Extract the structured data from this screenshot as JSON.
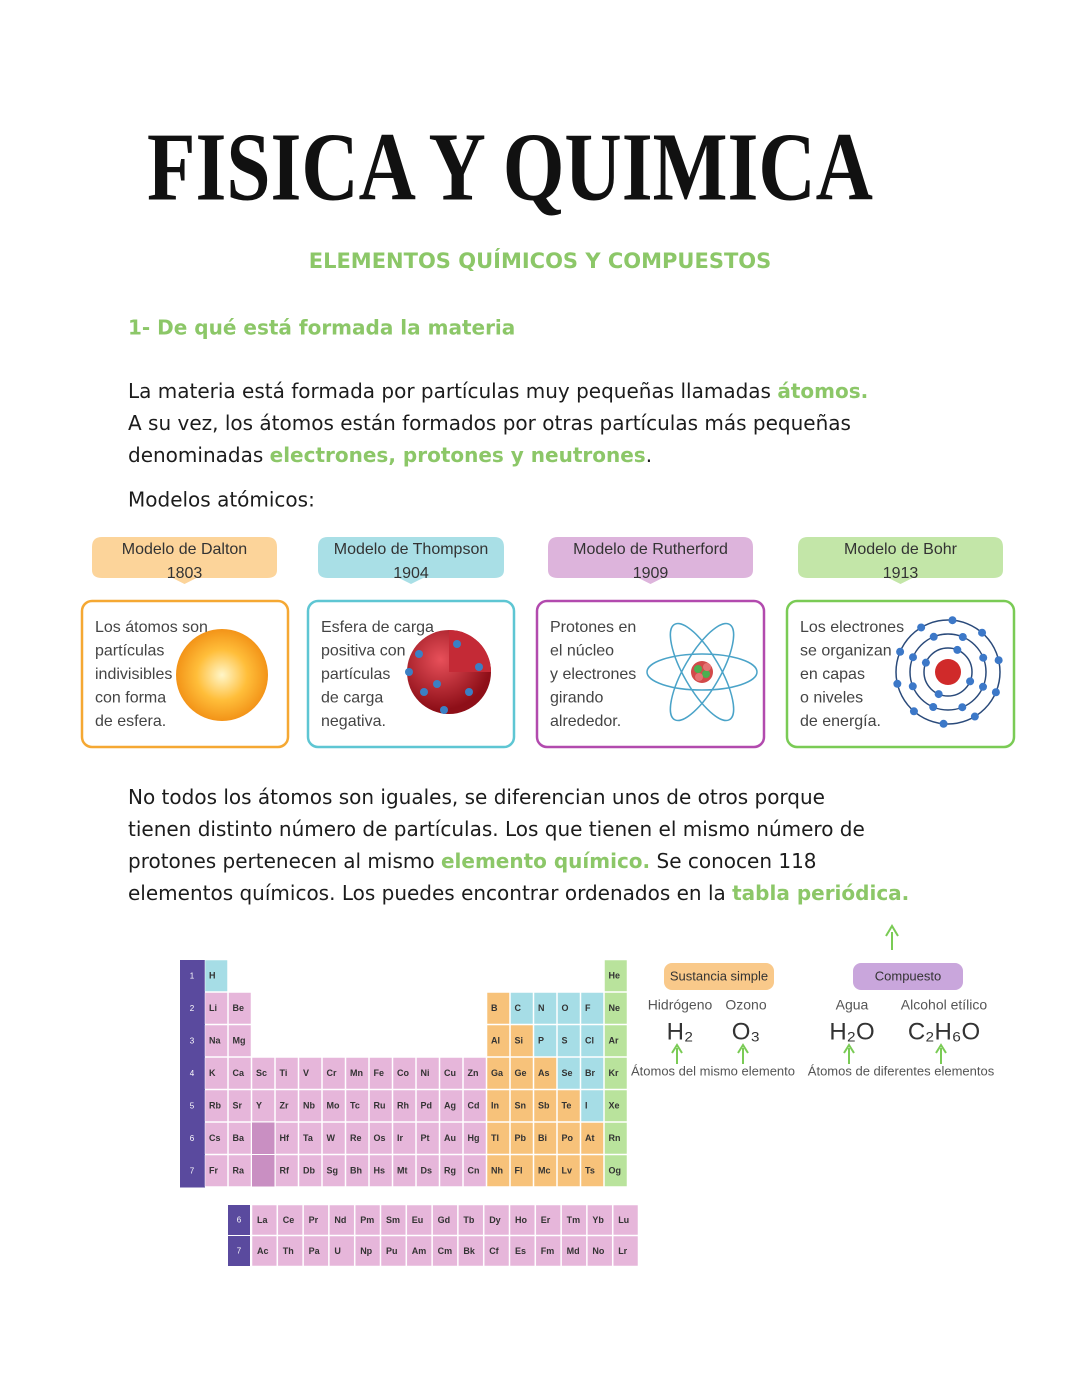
{
  "header": {
    "title": "FISICA Y QUIMICA",
    "subtitle": "ELEMENTOS QUÍMICOS Y COMPUESTOS"
  },
  "section": {
    "heading": "1- De qué está formada la materia"
  },
  "paragraphs": [
    [
      [
        {
          "text": "La materia está formada por partículas muy pequeñas llamadas "
        },
        {
          "text": "átomos.",
          "highlight": true
        }
      ],
      [
        {
          "text": "A su vez, los átomos están formados por otras partículas más pequeñas"
        }
      ],
      [
        {
          "text": "denominadas "
        },
        {
          "text": "electrones, protones y neutrones",
          "highlight": true
        },
        {
          "text": "."
        }
      ]
    ],
    [
      [
        {
          "text": "No todos los átomos son iguales, se diferencian unos de otros porque"
        }
      ],
      [
        {
          "text": "tienen distinto número de partículas. Los que tienen el mismo número de"
        }
      ],
      [
        {
          "text": "protones pertenecen al mismo "
        },
        {
          "text": "elemento químico.",
          "highlight": true
        },
        {
          "text": " Se conocen 118"
        }
      ],
      [
        {
          "text": "elementos químicos. Los puedes encontrar ordenados en la "
        },
        {
          "text": "tabla periódica.",
          "highlight": true
        }
      ]
    ]
  ],
  "models_label": "Modelos atómicos:",
  "models": [
    {
      "name": "Modelo de Dalton",
      "year": "1803",
      "description": [
        "Los átomos son",
        "partículas",
        "indivisibles",
        "con forma",
        "de esfera."
      ],
      "color": "#f5a833",
      "tab_color": "#fcd49a"
    },
    {
      "name": "Modelo de Thompson",
      "year": "1904",
      "description": [
        "Esfera de carga",
        "positiva con",
        "partículas",
        "de carga",
        "negativa."
      ],
      "color": "#5ec6d3",
      "tab_color": "#a9dfe6"
    },
    {
      "name": "Modelo de Rutherford",
      "year": "1909",
      "description": [
        "Protones en",
        "el núcleo",
        "y electrones",
        "girando",
        "alrededor."
      ],
      "color": "#b24aae",
      "tab_color": "#ddb4dc"
    },
    {
      "name": "Modelo de Bohr",
      "year": "1913",
      "description": [
        "Los electrones",
        "se organizan",
        "en capas",
        "o niveles",
        "de energía."
      ],
      "color": "#7acb55",
      "tab_color": "#c3e6a8"
    }
  ],
  "periodic_table": {
    "period_labels": [
      "1",
      "2",
      "3",
      "4",
      "5",
      "6",
      "7"
    ],
    "periods": [
      [
        "H",
        "He"
      ],
      [
        "Li",
        "Be",
        "B",
        "C",
        "N",
        "O",
        "F",
        "Ne"
      ],
      [
        "Na",
        "Mg",
        "Al",
        "Si",
        "P",
        "S",
        "Cl",
        "Ar"
      ],
      [
        "K",
        "Ca",
        "Sc",
        "Ti",
        "V",
        "Cr",
        "Mn",
        "Fe",
        "Co",
        "Ni",
        "Cu",
        "Zn",
        "Ga",
        "Ge",
        "As",
        "Se",
        "Br",
        "Kr"
      ],
      [
        "Rb",
        "Sr",
        "Y",
        "Zr",
        "Nb",
        "Mo",
        "Tc",
        "Ru",
        "Rh",
        "Pd",
        "Ag",
        "Cd",
        "In",
        "Sn",
        "Sb",
        "Te",
        "I",
        "Xe"
      ],
      [
        "Cs",
        "Ba",
        "Hf",
        "Ta",
        "W",
        "Re",
        "Os",
        "Ir",
        "Pt",
        "Au",
        "Hg",
        "Tl",
        "Pb",
        "Bi",
        "Po",
        "At",
        "Rn"
      ],
      [
        "Fr",
        "Ra",
        "Rf",
        "Db",
        "Sg",
        "Bh",
        "Hs",
        "Mt",
        "Ds",
        "Rg",
        "Cn",
        "Nh",
        "Fl",
        "Mc",
        "Lv",
        "Ts",
        "Og"
      ]
    ],
    "f_labels": [
      "6",
      "7"
    ],
    "f_block": [
      [
        "La",
        "Ce",
        "Pr",
        "Nd",
        "Pm",
        "Sm",
        "Eu",
        "Gd",
        "Tb",
        "Dy",
        "Ho",
        "Er",
        "Tm",
        "Yb",
        "Lu"
      ],
      [
        "Ac",
        "Th",
        "Pa",
        "U",
        "Np",
        "Pu",
        "Am",
        "Cm",
        "Bk",
        "Cf",
        "Es",
        "Fm",
        "Md",
        "No",
        "Lr"
      ]
    ]
  },
  "substances": [
    {
      "label": "Sustancia simple",
      "color": "#f9c98a",
      "examples": [
        {
          "name": "Hidrógeno",
          "formula": "H₂"
        },
        {
          "name": "Ozono",
          "formula": "O₃"
        }
      ],
      "caption": "Átomos del mismo elemento"
    },
    {
      "label": "Compuesto",
      "color": "#c9a6dc",
      "examples": [
        {
          "name": "Agua",
          "formula": "H₂O"
        },
        {
          "name": "Alcohol etílico",
          "formula": "C₂H₆O"
        }
      ],
      "caption": "Átomos de diferentes elementos"
    }
  ]
}
